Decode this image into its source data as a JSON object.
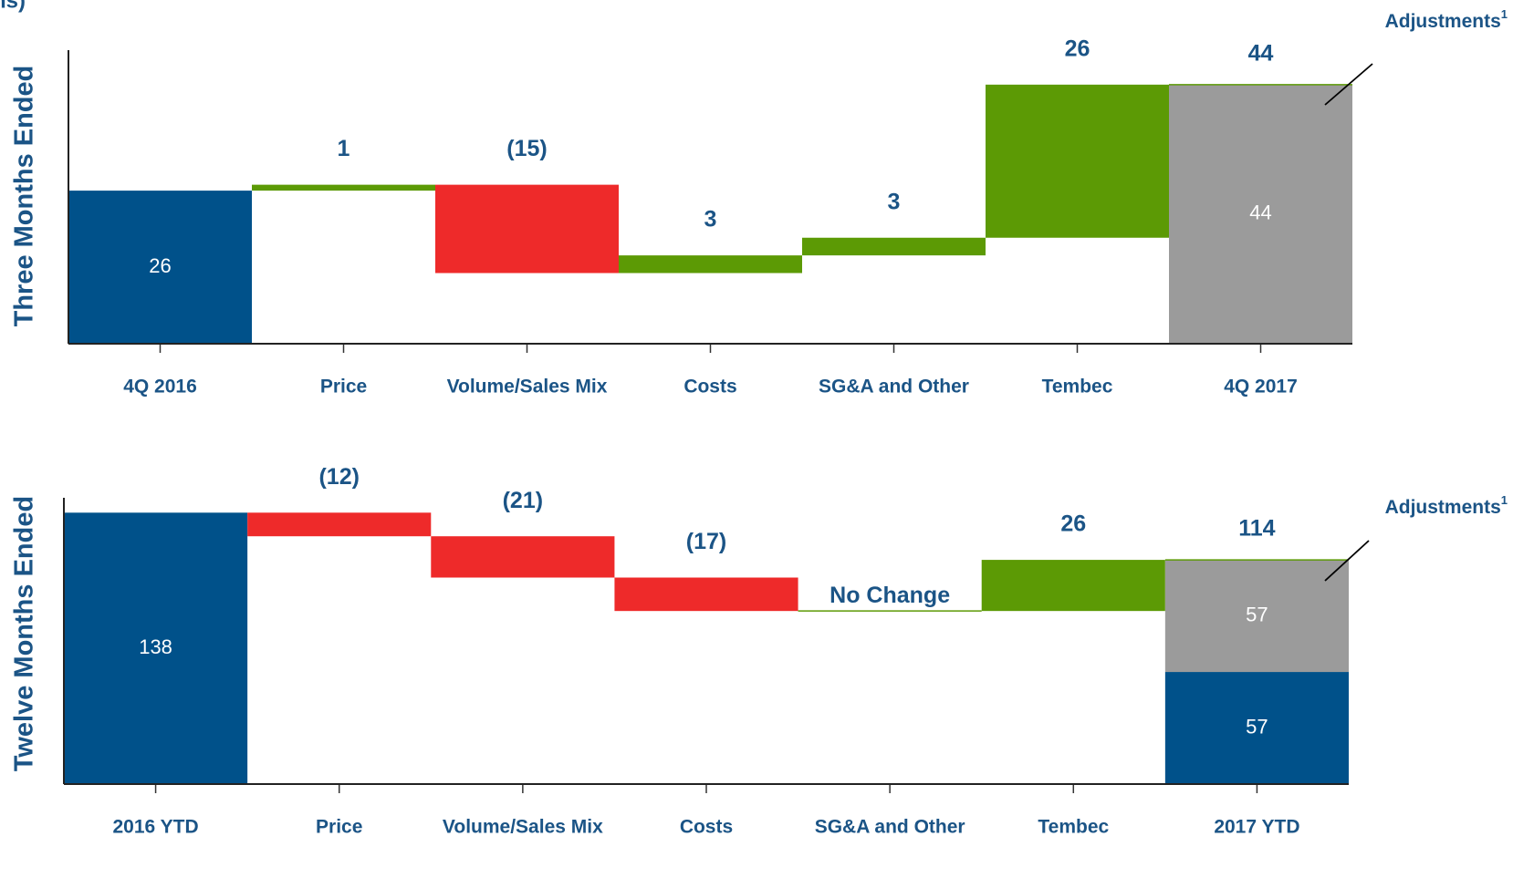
{
  "title": "ns)",
  "chart_data": [
    {
      "type": "waterfall",
      "y_label": "Three Months Ended",
      "categories": [
        "4Q 2016",
        "Price",
        "Volume/Sales Mix",
        "Costs",
        "SG&A and Other",
        "Tembec",
        "4Q 2017"
      ],
      "values": [
        26,
        1,
        -15,
        3,
        3,
        26,
        44
      ],
      "value_labels": [
        "26",
        "1",
        "(15)",
        "3",
        "3",
        "26",
        "44"
      ],
      "colors": {
        "start": "#00518a",
        "increase": "#5c9a05",
        "decrease": "#ee2a2a"
      },
      "total_segments": [
        {
          "value": 44,
          "color": "#9b9b9b"
        }
      ],
      "annotation": {
        "text": "Adjustments",
        "footnote": "1"
      },
      "ylim": [
        0,
        48
      ]
    },
    {
      "type": "waterfall",
      "y_label": "Twelve Months Ended",
      "categories": [
        "2016 YTD",
        "Price",
        "Volume/Sales Mix",
        "Costs",
        "SG&A and Other",
        "Tembec",
        "2017 YTD"
      ],
      "values": [
        138,
        -12,
        -21,
        -17,
        0,
        26,
        114
      ],
      "value_labels": [
        "138",
        "(12)",
        "(21)",
        "(17)",
        "No Change",
        "26",
        "114"
      ],
      "colors": {
        "start": "#00518a",
        "increase": "#5c9a05",
        "decrease": "#ee2a2a"
      },
      "total_segments": [
        {
          "value": 57,
          "color": "#00518a"
        },
        {
          "value": 57,
          "color": "#9b9b9b"
        }
      ],
      "annotation": {
        "text": "Adjustments",
        "footnote": "1"
      },
      "ylim": [
        0,
        140
      ]
    }
  ]
}
